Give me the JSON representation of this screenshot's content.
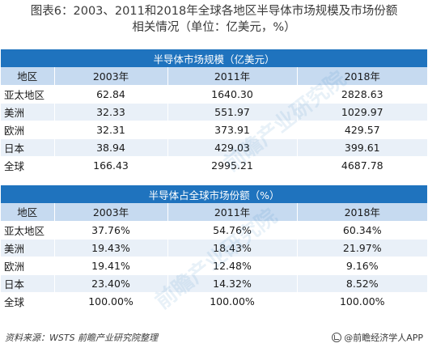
{
  "title": {
    "line1": "图表6：2003、2011和2018年全球各地区半导体市场规模及市场份额",
    "line2": "相关情况（单位：亿美元，%）"
  },
  "table1": {
    "banner": "半导体市场规模（亿美元）",
    "headers": [
      "地区",
      "2003年",
      "2011年",
      "2018年"
    ],
    "rows": [
      [
        "亚太地区",
        "62.84",
        "1640.30",
        "2828.63"
      ],
      [
        "美洲",
        "32.33",
        "551.97",
        "1029.97"
      ],
      [
        "欧洲",
        "32.31",
        "373.91",
        "429.57"
      ],
      [
        "日本",
        "38.94",
        "429.03",
        "399.61"
      ],
      [
        "全球",
        "166.43",
        "2995.21",
        "4687.78"
      ]
    ]
  },
  "table2": {
    "banner": "半导体占全球市场份额（%）",
    "headers": [
      "地区",
      "2003年",
      "2011年",
      "2018年"
    ],
    "rows": [
      [
        "亚太地区",
        "37.76%",
        "54.76%",
        "60.34%"
      ],
      [
        "美洲",
        "19.43%",
        "18.43%",
        "21.97%"
      ],
      [
        "欧洲",
        "19.41%",
        "12.48%",
        "9.16%"
      ],
      [
        "日本",
        "23.40%",
        "14.32%",
        "8.52%"
      ],
      [
        "全球",
        "100.00%",
        "100.00%",
        "100.00%"
      ]
    ]
  },
  "footer": {
    "source": "资料来源：WSTS 前瞻产业研究院整理",
    "brand": "@前瞻经济学人APP"
  },
  "watermark": {
    "text1": "前瞻产业研究院",
    "text2": "前瞻产业研究院"
  },
  "colors": {
    "banner": "#1f73be",
    "header": "#c6daf0",
    "stripe": "#e9f0f8"
  }
}
